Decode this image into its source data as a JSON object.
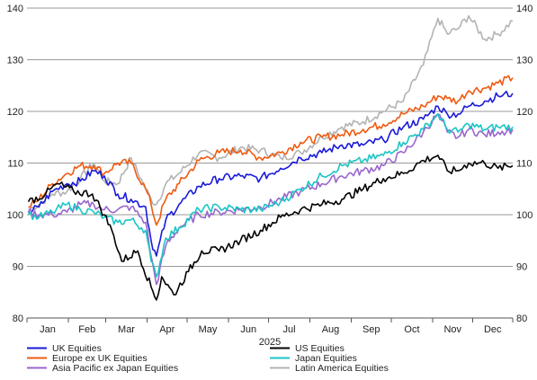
{
  "chart_data": {
    "type": "line",
    "title": "",
    "xlabel": "2025",
    "ylabel": "",
    "ylim": [
      80,
      140
    ],
    "yticks": [
      80,
      90,
      100,
      110,
      120,
      130,
      140
    ],
    "x_range": [
      "2025-01-01",
      "2025-12-31"
    ],
    "month_labels": [
      "Jan",
      "Feb",
      "Mar",
      "Apr",
      "May",
      "Jun",
      "Jul",
      "Aug",
      "Sep",
      "Oct",
      "Nov",
      "Dec"
    ],
    "grid": "horizontal",
    "legend_position": "bottom",
    "series": [
      {
        "name": "UK Equities",
        "color": "#1a1adb",
        "points": [
          [
            "2025-01-02",
            100.5
          ],
          [
            "2025-01-10",
            101.5
          ],
          [
            "2025-01-20",
            104.5
          ],
          [
            "2025-01-31",
            106
          ],
          [
            "2025-02-10",
            106.5
          ],
          [
            "2025-02-20",
            108.5
          ],
          [
            "2025-02-28",
            107.5
          ],
          [
            "2025-03-10",
            104
          ],
          [
            "2025-03-20",
            103
          ],
          [
            "2025-03-31",
            101.5
          ],
          [
            "2025-04-04",
            95
          ],
          [
            "2025-04-08",
            92
          ],
          [
            "2025-04-15",
            99
          ],
          [
            "2025-04-25",
            102
          ],
          [
            "2025-05-10",
            105.5
          ],
          [
            "2025-05-25",
            107
          ],
          [
            "2025-06-10",
            107.5
          ],
          [
            "2025-06-25",
            107
          ],
          [
            "2025-07-10",
            109
          ],
          [
            "2025-07-25",
            111
          ],
          [
            "2025-08-10",
            112
          ],
          [
            "2025-08-25",
            113.5
          ],
          [
            "2025-09-10",
            113.5
          ],
          [
            "2025-09-25",
            114.5
          ],
          [
            "2025-10-10",
            117
          ],
          [
            "2025-10-25",
            118.5
          ],
          [
            "2025-11-05",
            121
          ],
          [
            "2025-11-12",
            119.5
          ],
          [
            "2025-11-20",
            119.5
          ],
          [
            "2025-11-28",
            121
          ],
          [
            "2025-12-10",
            122
          ],
          [
            "2025-12-20",
            123
          ],
          [
            "2025-12-31",
            123.5
          ]
        ]
      },
      {
        "name": "US Equities",
        "color": "#000000",
        "points": [
          [
            "2025-01-02",
            102.5
          ],
          [
            "2025-01-15",
            104
          ],
          [
            "2025-01-24",
            106
          ],
          [
            "2025-02-05",
            104.5
          ],
          [
            "2025-02-19",
            104
          ],
          [
            "2025-02-28",
            100
          ],
          [
            "2025-03-07",
            96
          ],
          [
            "2025-03-13",
            91
          ],
          [
            "2025-03-25",
            93
          ],
          [
            "2025-04-04",
            86
          ],
          [
            "2025-04-08",
            83.5
          ],
          [
            "2025-04-12",
            88
          ],
          [
            "2025-04-21",
            84.5
          ],
          [
            "2025-05-02",
            89
          ],
          [
            "2025-05-12",
            93
          ],
          [
            "2025-05-25",
            93
          ],
          [
            "2025-06-10",
            95
          ],
          [
            "2025-06-25",
            97
          ],
          [
            "2025-07-10",
            99.5
          ],
          [
            "2025-07-25",
            101
          ],
          [
            "2025-08-10",
            102
          ],
          [
            "2025-08-25",
            103
          ],
          [
            "2025-09-10",
            105
          ],
          [
            "2025-09-25",
            107
          ],
          [
            "2025-10-10",
            108
          ],
          [
            "2025-10-25",
            110.5
          ],
          [
            "2025-11-05",
            111.5
          ],
          [
            "2025-11-12",
            108.5
          ],
          [
            "2025-11-20",
            108.5
          ],
          [
            "2025-11-28",
            110
          ],
          [
            "2025-12-10",
            110
          ],
          [
            "2025-12-20",
            109
          ],
          [
            "2025-12-31",
            109.5
          ]
        ]
      },
      {
        "name": "Europe ex UK Equities",
        "color": "#f05a10",
        "points": [
          [
            "2025-01-02",
            101.5
          ],
          [
            "2025-01-10",
            103
          ],
          [
            "2025-01-20",
            106
          ],
          [
            "2025-01-31",
            108
          ],
          [
            "2025-02-10",
            109.5
          ],
          [
            "2025-02-20",
            109.5
          ],
          [
            "2025-02-28",
            108
          ],
          [
            "2025-03-10",
            110
          ],
          [
            "2025-03-20",
            110
          ],
          [
            "2025-03-31",
            105
          ],
          [
            "2025-04-04",
            102
          ],
          [
            "2025-04-08",
            98
          ],
          [
            "2025-04-15",
            103
          ],
          [
            "2025-04-25",
            106
          ],
          [
            "2025-05-10",
            110.5
          ],
          [
            "2025-05-25",
            112
          ],
          [
            "2025-06-10",
            112.5
          ],
          [
            "2025-06-25",
            111
          ],
          [
            "2025-07-10",
            112
          ],
          [
            "2025-07-25",
            114
          ],
          [
            "2025-08-10",
            115
          ],
          [
            "2025-08-25",
            115.5
          ],
          [
            "2025-09-10",
            116.5
          ],
          [
            "2025-09-25",
            117.5
          ],
          [
            "2025-10-10",
            119.5
          ],
          [
            "2025-10-25",
            121
          ],
          [
            "2025-11-05",
            123
          ],
          [
            "2025-11-12",
            122.5
          ],
          [
            "2025-11-20",
            122
          ],
          [
            "2025-11-28",
            124
          ],
          [
            "2025-12-10",
            124.5
          ],
          [
            "2025-12-20",
            125.5
          ],
          [
            "2025-12-31",
            126.5
          ]
        ]
      },
      {
        "name": "Japan Equities",
        "color": "#1bc5c5",
        "points": [
          [
            "2025-01-02",
            100
          ],
          [
            "2025-01-10",
            99.5
          ],
          [
            "2025-01-20",
            100.5
          ],
          [
            "2025-01-31",
            102
          ],
          [
            "2025-02-10",
            101
          ],
          [
            "2025-02-20",
            100.5
          ],
          [
            "2025-02-28",
            99.5
          ],
          [
            "2025-03-10",
            98.5
          ],
          [
            "2025-03-20",
            99
          ],
          [
            "2025-03-31",
            97
          ],
          [
            "2025-04-04",
            91
          ],
          [
            "2025-04-08",
            88
          ],
          [
            "2025-04-15",
            95.5
          ],
          [
            "2025-04-25",
            97.5
          ],
          [
            "2025-05-10",
            101
          ],
          [
            "2025-05-25",
            101.5
          ],
          [
            "2025-06-10",
            101
          ],
          [
            "2025-06-25",
            101
          ],
          [
            "2025-07-10",
            102.5
          ],
          [
            "2025-07-25",
            105
          ],
          [
            "2025-08-10",
            107.5
          ],
          [
            "2025-08-25",
            109.5
          ],
          [
            "2025-09-10",
            110.5
          ],
          [
            "2025-09-25",
            111.5
          ],
          [
            "2025-10-10",
            114
          ],
          [
            "2025-10-25",
            116.5
          ],
          [
            "2025-11-05",
            119.5
          ],
          [
            "2025-11-12",
            116.5
          ],
          [
            "2025-11-20",
            116
          ],
          [
            "2025-11-28",
            117.5
          ],
          [
            "2025-12-10",
            116.5
          ],
          [
            "2025-12-20",
            117
          ],
          [
            "2025-12-31",
            117
          ]
        ]
      },
      {
        "name": "Asia Pacific ex Japan Equities",
        "color": "#9966cc",
        "points": [
          [
            "2025-01-02",
            100.5
          ],
          [
            "2025-01-10",
            100
          ],
          [
            "2025-01-20",
            100
          ],
          [
            "2025-01-31",
            100.5
          ],
          [
            "2025-02-10",
            102
          ],
          [
            "2025-02-20",
            102
          ],
          [
            "2025-02-28",
            101
          ],
          [
            "2025-03-10",
            101
          ],
          [
            "2025-03-20",
            101.5
          ],
          [
            "2025-03-31",
            98.5
          ],
          [
            "2025-04-04",
            92
          ],
          [
            "2025-04-08",
            86.5
          ],
          [
            "2025-04-15",
            94
          ],
          [
            "2025-04-25",
            97.5
          ],
          [
            "2025-05-10",
            100
          ],
          [
            "2025-05-25",
            100.5
          ],
          [
            "2025-06-10",
            101
          ],
          [
            "2025-06-25",
            101.5
          ],
          [
            "2025-07-10",
            103
          ],
          [
            "2025-07-25",
            104.5
          ],
          [
            "2025-08-10",
            106
          ],
          [
            "2025-08-25",
            107.5
          ],
          [
            "2025-09-10",
            108.5
          ],
          [
            "2025-09-25",
            109.5
          ],
          [
            "2025-10-10",
            112
          ],
          [
            "2025-10-25",
            116
          ],
          [
            "2025-11-05",
            119.5
          ],
          [
            "2025-11-12",
            116
          ],
          [
            "2025-11-20",
            115
          ],
          [
            "2025-11-28",
            116.5
          ],
          [
            "2025-12-10",
            115.5
          ],
          [
            "2025-12-20",
            116
          ],
          [
            "2025-12-31",
            116.5
          ]
        ]
      },
      {
        "name": "Latin America Equities",
        "color": "#b3b3b3",
        "points": [
          [
            "2025-01-02",
            101
          ],
          [
            "2025-01-10",
            102
          ],
          [
            "2025-01-20",
            104
          ],
          [
            "2025-01-31",
            104.5
          ],
          [
            "2025-02-10",
            107
          ],
          [
            "2025-02-20",
            110
          ],
          [
            "2025-02-28",
            106.5
          ],
          [
            "2025-03-10",
            106
          ],
          [
            "2025-03-20",
            111
          ],
          [
            "2025-03-31",
            105
          ],
          [
            "2025-04-04",
            103
          ],
          [
            "2025-04-08",
            102
          ],
          [
            "2025-04-15",
            106
          ],
          [
            "2025-04-25",
            108
          ],
          [
            "2025-05-10",
            112
          ],
          [
            "2025-05-25",
            111
          ],
          [
            "2025-06-10",
            113
          ],
          [
            "2025-06-25",
            112.5
          ],
          [
            "2025-07-10",
            111
          ],
          [
            "2025-07-25",
            112
          ],
          [
            "2025-08-10",
            115
          ],
          [
            "2025-08-25",
            117
          ],
          [
            "2025-09-10",
            118
          ],
          [
            "2025-09-25",
            120
          ],
          [
            "2025-10-10",
            122
          ],
          [
            "2025-10-25",
            129
          ],
          [
            "2025-11-05",
            138
          ],
          [
            "2025-11-12",
            135
          ],
          [
            "2025-11-20",
            136
          ],
          [
            "2025-11-28",
            138.5
          ],
          [
            "2025-12-10",
            134
          ],
          [
            "2025-12-20",
            135
          ],
          [
            "2025-12-31",
            137.5
          ]
        ]
      }
    ]
  }
}
